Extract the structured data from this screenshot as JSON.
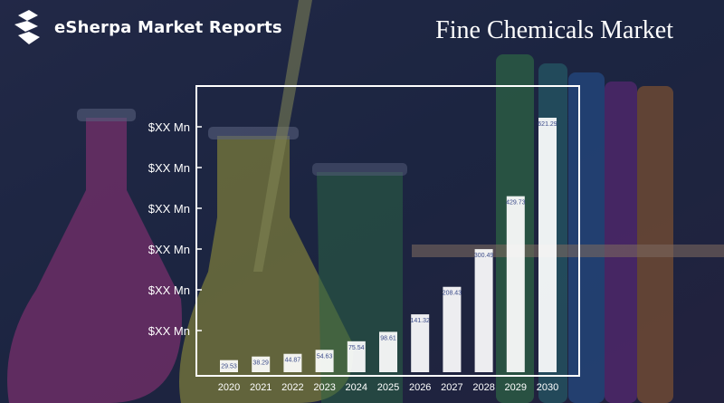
{
  "brand": {
    "name": "eSherpa Market Reports",
    "logo_icon": "esherpa-logo-icon"
  },
  "chart_data": {
    "type": "bar",
    "title": "Fine Chemicals Market",
    "categories": [
      "2020",
      "2021",
      "2022",
      "2023",
      "2024",
      "2025",
      "2026",
      "2027",
      "2028",
      "2029",
      "2030"
    ],
    "values": [
      29.53,
      38.29,
      44.87,
      54.63,
      75.54,
      98.61,
      141.32,
      208.43,
      300.49,
      429.73,
      621.29
    ],
    "data_labels": [
      "29.53",
      "38.29",
      "44.87",
      "54.63",
      "75.54",
      "98.61",
      "141.32",
      "208.43",
      "300.49",
      "429.73",
      "621.29"
    ],
    "y_tick_labels": [
      "$XX Mn",
      "$XX Mn",
      "$XX Mn",
      "$XX Mn",
      "$XX Mn",
      "$XX Mn"
    ],
    "xlabel": "",
    "ylabel": "",
    "ylim": [
      0,
      650
    ],
    "grid": false,
    "bar_color": "#ffffff"
  }
}
